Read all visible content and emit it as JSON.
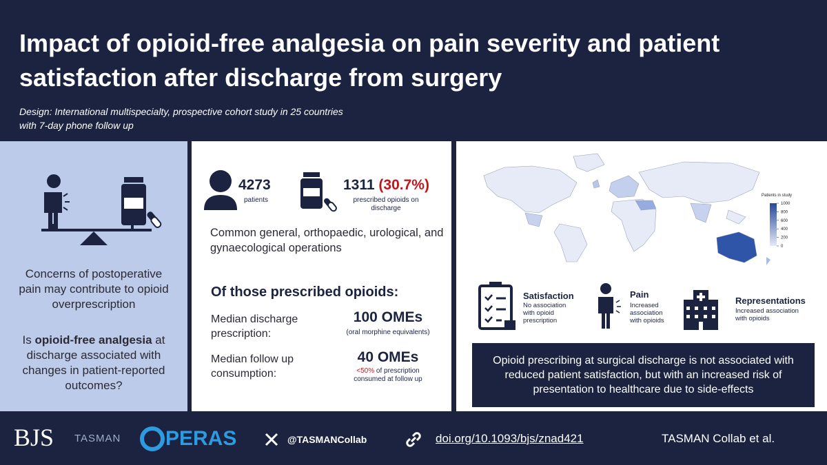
{
  "header": {
    "title": "Impact of opioid-free analgesia on pain severity and patient satisfaction after discharge from surgery",
    "subtitle_lines": [
      "Design: International multispecialty, prospective cohort study in 25 countries",
      "with 7-day phone follow up"
    ]
  },
  "left_panel": {
    "concern": "Concerns of postoperative pain may contribute to opioid overprescription",
    "question": [
      "Is ",
      "opioid-free analgesia",
      " at discharge associated with changes in patient-reported outcomes?"
    ]
  },
  "middle_panel": {
    "patients": {
      "number": "4273",
      "label": "patients"
    },
    "prescribed": {
      "number": "1311",
      "percent": "(30.7%)",
      "label": "prescribed opioids on discharge"
    },
    "operations": "Common general, orthopaedic, urological, and gynaecological operations",
    "subheading": "Of those prescribed opioids:",
    "rows": [
      {
        "label": "Median discharge prescription:",
        "value": "100 OMEs",
        "note": [
          "(oral morphine equivalents)"
        ]
      },
      {
        "label": "Median follow up consumption:",
        "value": "40 OMEs",
        "note": [
          "<50%",
          " of prescription consumed at follow up"
        ]
      }
    ]
  },
  "right_panel": {
    "map_legend": {
      "title": "Patients in study",
      "ticks": [
        0,
        200,
        400,
        600,
        800,
        1000
      ]
    },
    "outcomes": [
      {
        "title": "Satisfaction",
        "text": "No association with opioid prescription"
      },
      {
        "title": "Pain",
        "text": "Increased association with opioids"
      },
      {
        "title": "Representations",
        "text": "Increased association with opioids"
      }
    ],
    "conclusion": "Opioid prescribing at surgical discharge is not associated with reduced patient satisfaction, but with an increased risk of presentation to healthcare due to side-effects"
  },
  "footer": {
    "journal": "BJS",
    "tasman": "TASMAN",
    "operas": "PERAS",
    "handle": "@TASMANCollab",
    "doi": "doi.org/10.1093/bjs/znad421",
    "credit": "TASMAN Collab et al."
  }
}
